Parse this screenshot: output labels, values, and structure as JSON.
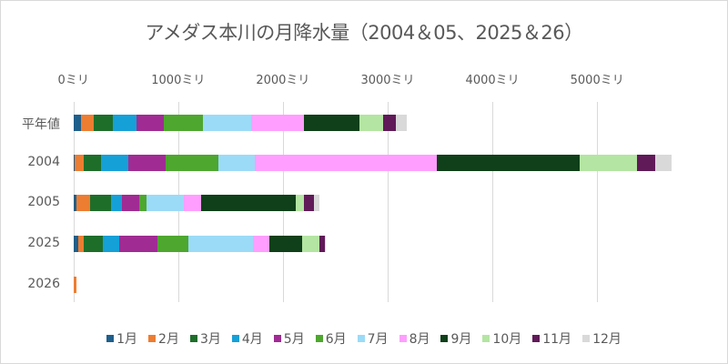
{
  "chart_data": {
    "type": "bar",
    "orientation": "horizontal",
    "stacked": true,
    "title": "アメダス本川の月降水量（2004＆05、2025＆26）",
    "xlabel": "",
    "ylabel": "",
    "xlim": [
      0,
      5800
    ],
    "x_ticks": [
      0,
      1000,
      2000,
      3000,
      4000,
      5000
    ],
    "x_tick_labels": [
      "0ミリ",
      "1000ミリ",
      "2000ミリ",
      "3000ミリ",
      "4000ミリ",
      "5000ミリ"
    ],
    "x_axis_position": "top",
    "grid": true,
    "legend_position": "bottom",
    "categories": [
      "平年値",
      "2004",
      "2005",
      "2025",
      "2026"
    ],
    "series": [
      {
        "name": "1月",
        "color": "#1f5f8b",
        "values": [
          72,
          14,
          29,
          43,
          6
        ]
      },
      {
        "name": "2月",
        "color": "#ed7d31",
        "values": [
          119,
          82,
          130,
          52,
          22
        ]
      },
      {
        "name": "3月",
        "color": "#1e6e2a",
        "values": [
          185,
          165,
          202,
          188,
          0
        ]
      },
      {
        "name": "4月",
        "color": "#15a0d8",
        "values": [
          226,
          266,
          102,
          156,
          0
        ]
      },
      {
        "name": "5月",
        "color": "#a02b93",
        "values": [
          261,
          351,
          165,
          360,
          0
        ]
      },
      {
        "name": "6月",
        "color": "#4ea72e",
        "values": [
          371,
          509,
          70,
          298,
          0
        ]
      },
      {
        "name": "7月",
        "color": "#9bdbf7",
        "values": [
          460,
          345,
          354,
          617,
          0
        ]
      },
      {
        "name": "8月",
        "color": "#ff9eff",
        "values": [
          507,
          1738,
          165,
          154,
          0
        ]
      },
      {
        "name": "9月",
        "color": "#0f4019",
        "values": [
          533,
          1364,
          909,
          318,
          0
        ]
      },
      {
        "name": "10月",
        "color": "#b4e5a2",
        "values": [
          226,
          547,
          76,
          162,
          0
        ]
      },
      {
        "name": "11月",
        "color": "#601a58",
        "values": [
          122,
          174,
          96,
          50,
          0
        ]
      },
      {
        "name": "12月",
        "color": "#d9d9d9",
        "values": [
          99,
          154,
          52,
          14,
          0
        ]
      }
    ]
  }
}
